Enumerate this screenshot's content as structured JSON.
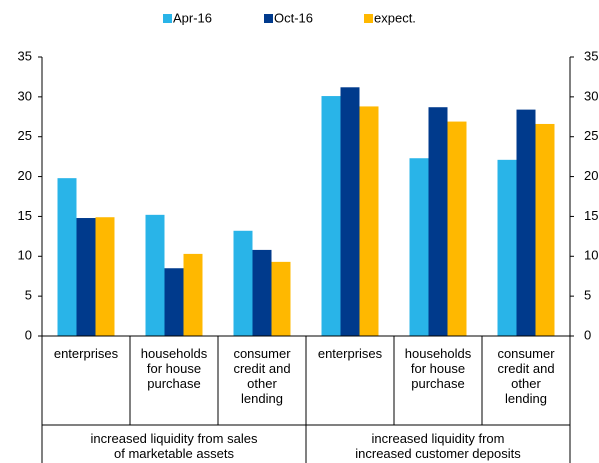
{
  "chart_data": {
    "type": "bar",
    "categories": [
      "enterprises",
      "households\nfor house\npurchase",
      "consumer\ncredit and\nother\nlending",
      "enterprises",
      "households\nfor house\npurchase",
      "consumer\ncredit and\nother\nlending"
    ],
    "groups": [
      "increased liquidity from sales\nof marketable assets",
      "increased liquidity from\nincreased customer deposits"
    ],
    "series": [
      {
        "name": "Apr-16",
        "color": "#29b4e8",
        "values": [
          19.8,
          15.2,
          13.2,
          30.1,
          22.3,
          22.1
        ]
      },
      {
        "name": "Oct-16",
        "color": "#003a8c",
        "values": [
          14.8,
          8.5,
          10.8,
          31.2,
          28.7,
          28.4
        ]
      },
      {
        "name": "expect.",
        "color": "#ffb800",
        "values": [
          14.9,
          10.3,
          9.3,
          28.8,
          26.9,
          26.6
        ]
      }
    ],
    "ylim": [
      0,
      35
    ],
    "yticks": [
      0,
      5,
      10,
      15,
      20,
      25,
      30,
      35
    ],
    "y2lim": [
      0,
      35
    ],
    "y2ticks": [
      0,
      5,
      10,
      15,
      20,
      25,
      30,
      35
    ],
    "legend": "top"
  }
}
